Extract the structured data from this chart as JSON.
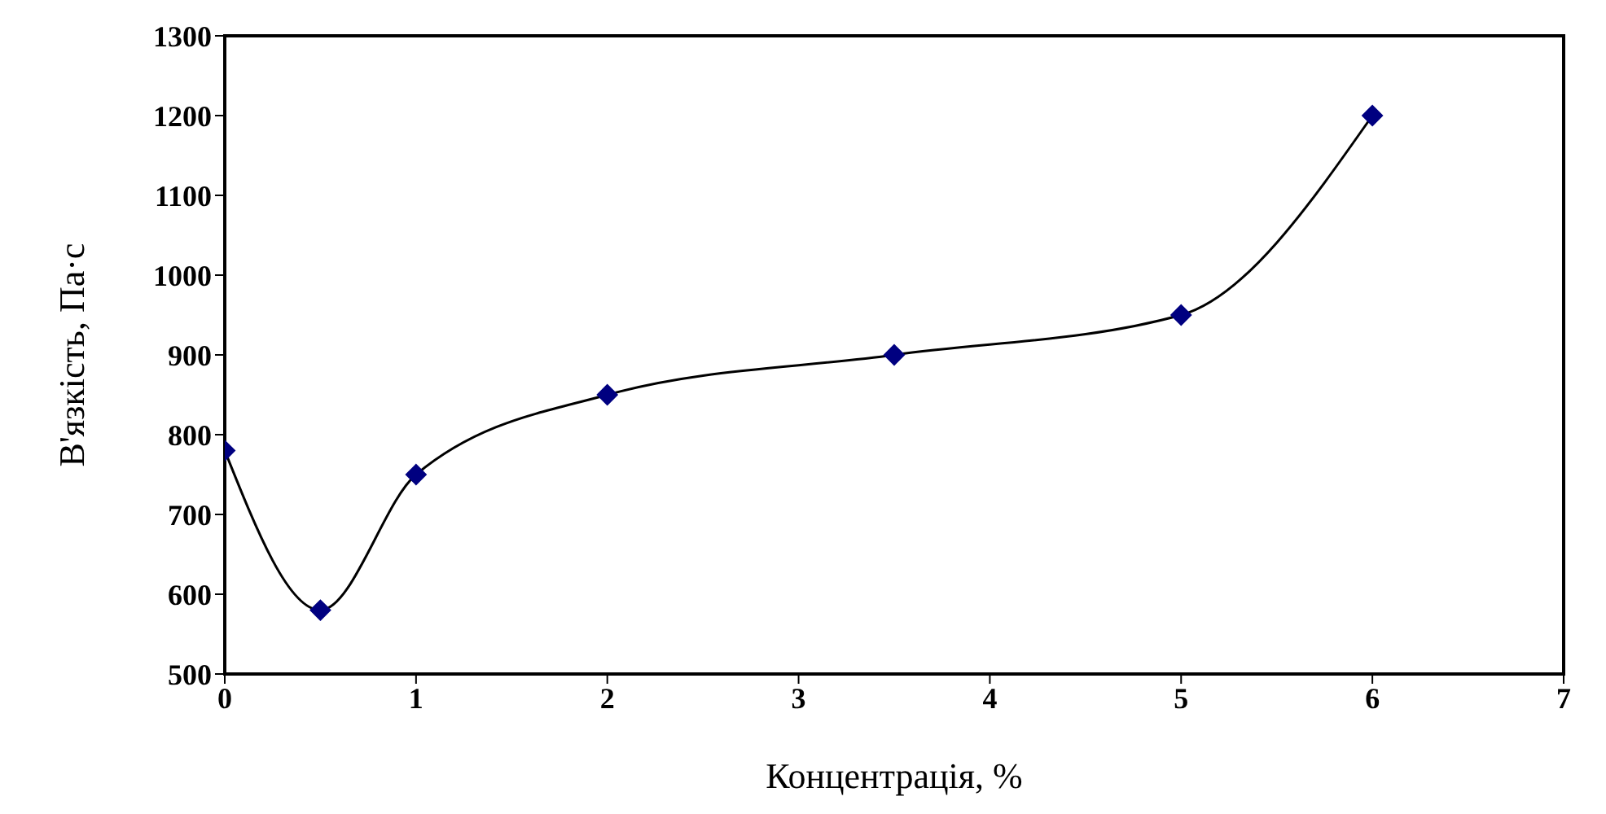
{
  "chart_data": {
    "type": "line",
    "xlabel": "Концентрація, %",
    "ylabel": "В'язкість, Па·с",
    "x": [
      0,
      0.5,
      1,
      2,
      3.5,
      5,
      6
    ],
    "series": [
      {
        "color": "#000080",
        "values": [
          780,
          580,
          750,
          850,
          900,
          950,
          1200
        ]
      }
    ],
    "xlim": [
      0,
      7
    ],
    "xticks": [
      0,
      1,
      2,
      3,
      4,
      5,
      6,
      7
    ],
    "ylim": [
      500,
      1300
    ],
    "yticks": [
      500,
      600,
      700,
      800,
      900,
      1000,
      1100,
      1200,
      1300
    ],
    "grid": false,
    "marker": "diamond",
    "line_style": "solid"
  }
}
